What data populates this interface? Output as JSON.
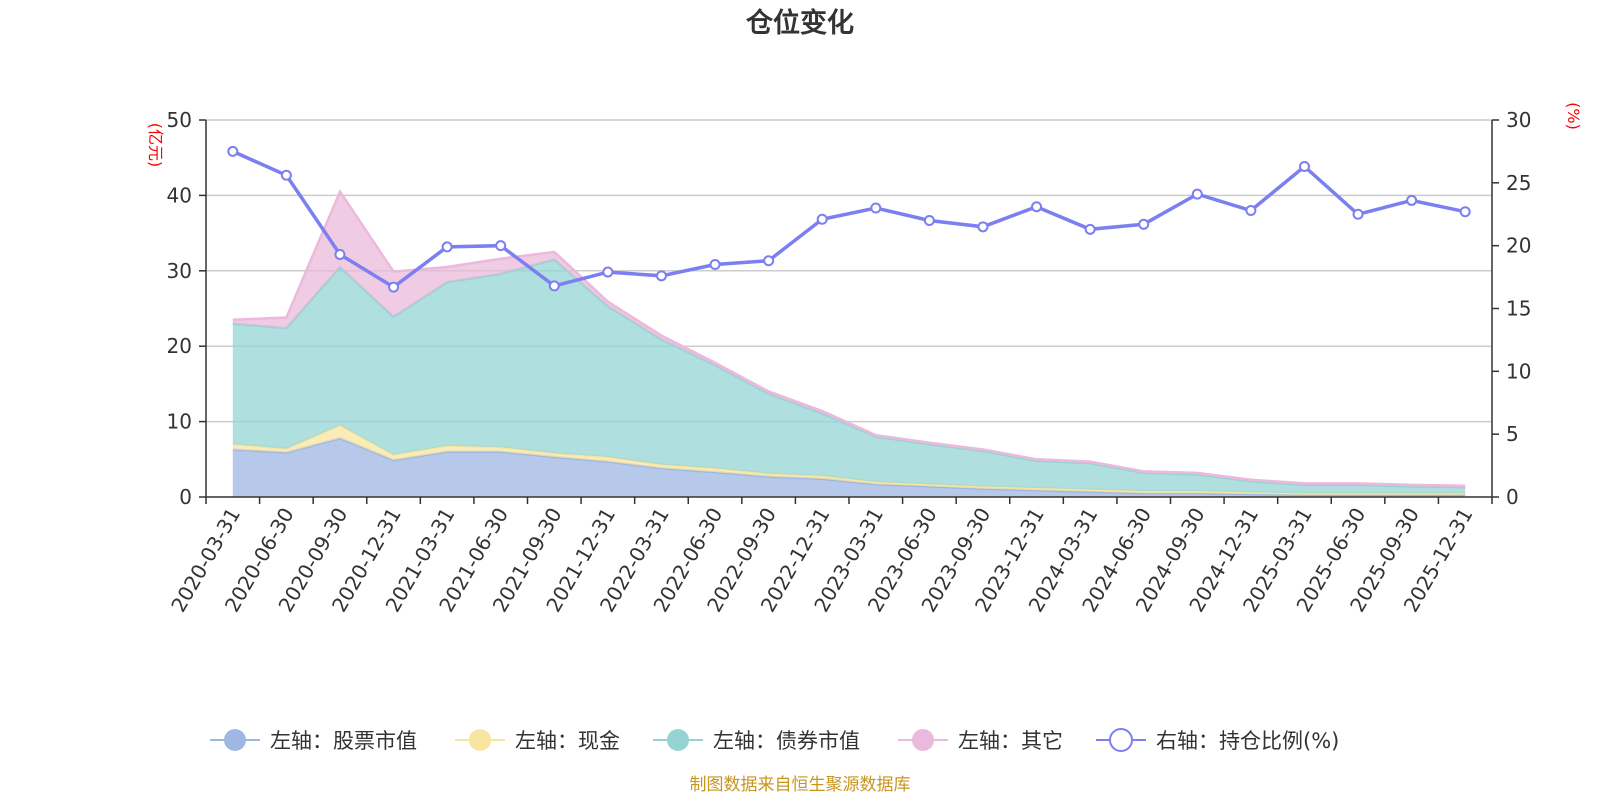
{
  "chart_data": {
    "type": "area",
    "title": "仓位变化",
    "source": "制图数据来自恒生聚源数据库",
    "left_axis": {
      "unit": "(亿元)",
      "ylim": [
        0,
        50
      ],
      "ticks": [
        0,
        10,
        20,
        30,
        40,
        50
      ]
    },
    "right_axis": {
      "unit": "(%)",
      "ylim": [
        0,
        30
      ],
      "ticks": [
        0,
        5,
        10,
        15,
        20,
        25,
        30
      ]
    },
    "categories": [
      "2020-03-31",
      "2020-06-30",
      "2020-09-30",
      "2020-12-31",
      "2021-03-31",
      "2021-06-30",
      "2021-09-30",
      "2021-12-31",
      "2022-03-31",
      "2022-06-30",
      "2022-09-30",
      "2022-12-31",
      "2023-03-31",
      "2023-06-30",
      "2023-09-30",
      "2023-12-31",
      "2024-03-31",
      "2024-06-30",
      "2024-09-30",
      "2024-12-31",
      "2025-03-31",
      "2025-06-30",
      "2025-09-30",
      "2025-12-31"
    ],
    "stacked_series": [
      {
        "name": "左轴：股票市值",
        "color": "#9fb7e3",
        "values": [
          6.3,
          5.9,
          7.8,
          4.9,
          6.0,
          6.0,
          5.3,
          4.7,
          3.8,
          3.3,
          2.7,
          2.4,
          1.7,
          1.4,
          1.1,
          0.9,
          0.7,
          0.5,
          0.5,
          0.4,
          0.3,
          0.3,
          0.3,
          0.3
        ]
      },
      {
        "name": "左轴：现金",
        "color": "#f8e5a0",
        "values": [
          0.7,
          0.5,
          1.7,
          0.7,
          0.8,
          0.6,
          0.5,
          0.6,
          0.5,
          0.5,
          0.4,
          0.4,
          0.3,
          0.3,
          0.3,
          0.3,
          0.3,
          0.3,
          0.3,
          0.2,
          0.2,
          0.2,
          0.2,
          0.2
        ]
      },
      {
        "name": "左轴：债券市值",
        "color": "#96d4d4",
        "values": [
          16.0,
          16.0,
          21.0,
          18.3,
          21.7,
          23.0,
          25.7,
          20.0,
          16.6,
          13.7,
          10.6,
          8.3,
          6.0,
          5.3,
          4.7,
          3.6,
          3.5,
          2.4,
          2.2,
          1.5,
          1.1,
          1.1,
          0.9,
          0.8
        ]
      },
      {
        "name": "左轴：其它",
        "color": "#ebb9db",
        "values": [
          0.5,
          1.4,
          10.0,
          6.0,
          2.0,
          2.0,
          1.0,
          0.6,
          0.5,
          0.3,
          0.3,
          0.3,
          0.2,
          0.2,
          0.2,
          0.2,
          0.2,
          0.2,
          0.2,
          0.2,
          0.2,
          0.2,
          0.2,
          0.2
        ]
      }
    ],
    "line_series": {
      "name": "右轴：持仓比例(%)",
      "color": "#7b7ff0",
      "axis": "right",
      "values": [
        27.5,
        25.6,
        19.3,
        16.7,
        19.9,
        20.0,
        16.8,
        17.9,
        17.6,
        18.5,
        18.8,
        22.1,
        23.0,
        22.0,
        21.5,
        23.1,
        21.3,
        21.7,
        24.1,
        22.8,
        26.3,
        22.5,
        23.6,
        22.7
      ]
    },
    "legend_position": "bottom-center",
    "grid": true
  }
}
